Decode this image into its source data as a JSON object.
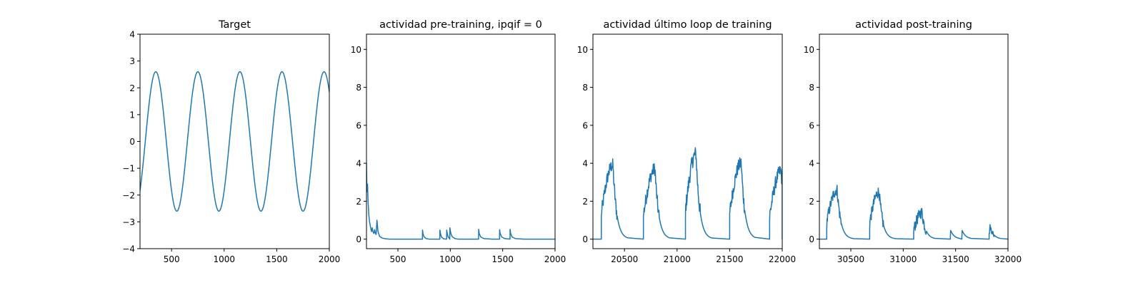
{
  "chart_data": [
    {
      "type": "line",
      "title": "Target",
      "xlim": [
        200,
        2000
      ],
      "ylim": [
        -4,
        4
      ],
      "xticks": [
        500,
        1000,
        1500,
        2000
      ],
      "yticks": [
        -4,
        -3,
        -2,
        -1,
        0,
        1,
        2,
        3,
        4
      ],
      "xtick_labels": [
        "500",
        "1000",
        "1500",
        "2000"
      ],
      "ytick_labels": [
        "−4",
        "−3",
        "−2",
        "−1",
        "0",
        "1",
        "2",
        "3",
        "4"
      ],
      "series": [
        {
          "kind": "sine",
          "amplitude": 2.6,
          "period": 400,
          "peak_at": 350,
          "x_range": [
            200,
            2000
          ]
        }
      ]
    },
    {
      "type": "line",
      "title": "actividad pre-training, ipqif = 0",
      "xlim": [
        200,
        2000
      ],
      "ylim": [
        -0.5,
        10.8
      ],
      "xticks": [
        500,
        1000,
        1500,
        2000
      ],
      "yticks": [
        0,
        2,
        4,
        6,
        8,
        10
      ],
      "xtick_labels": [
        "500",
        "1000",
        "1500",
        "2000"
      ],
      "ytick_labels": [
        "0",
        "2",
        "4",
        "6",
        "8",
        "10"
      ],
      "series": [
        {
          "kind": "spiky",
          "x": [
            200,
            203,
            206,
            210,
            215,
            222,
            230,
            240,
            248,
            255,
            262,
            270,
            278,
            285,
            292,
            300,
            310,
            325,
            350,
            380,
            420,
            500,
            600,
            700,
            734,
            735,
            740,
            750,
            770,
            800,
            850,
            900,
            901,
            906,
            915,
            935,
            960,
            965,
            966,
            971,
            980,
            990,
            995,
            996,
            1000,
            1008,
            1020,
            1045,
            1080,
            1150,
            1200,
            1270,
            1271,
            1276,
            1290,
            1320,
            1400,
            1470,
            1471,
            1476,
            1490,
            1520,
            1570,
            1571,
            1576,
            1590,
            1620,
            1700,
            1800,
            1900,
            2000
          ],
          "y": [
            4.0,
            3.0,
            2.5,
            2.9,
            2.0,
            1.3,
            0.9,
            0.6,
            0.4,
            0.6,
            0.4,
            0.3,
            0.5,
            0.3,
            0.25,
            1.0,
            0.4,
            0.15,
            0.06,
            0.02,
            0.0,
            0.0,
            0.0,
            0.0,
            0.0,
            0.48,
            0.28,
            0.12,
            0.03,
            0.0,
            0.0,
            0.0,
            0.48,
            0.3,
            0.12,
            0.02,
            0.0,
            0.0,
            0.48,
            0.3,
            0.12,
            0.05,
            0.0,
            0.6,
            0.45,
            0.25,
            0.12,
            0.03,
            0.0,
            0.0,
            0.0,
            0.0,
            0.52,
            0.3,
            0.12,
            0.03,
            0.0,
            0.0,
            0.5,
            0.3,
            0.12,
            0.03,
            0.0,
            0.52,
            0.3,
            0.12,
            0.03,
            0.0,
            0.0,
            0.0,
            0.0
          ]
        }
      ]
    },
    {
      "type": "line",
      "title": "actividad último loop de training",
      "xlim": [
        20200,
        22000
      ],
      "ylim": [
        -0.5,
        10.8
      ],
      "xticks": [
        20500,
        21000,
        21500,
        22000
      ],
      "yticks": [
        0,
        2,
        4,
        6,
        8,
        10
      ],
      "xtick_labels": [
        "20500",
        "21000",
        "21500",
        "22000"
      ],
      "ytick_labels": [
        "0",
        "2",
        "4",
        "6",
        "8",
        "10"
      ],
      "series": [
        {
          "kind": "bursts",
          "bursts": [
            {
              "start": 20280,
              "peak_x": 20390,
              "peak_y": 3.9,
              "end": 20530,
              "noise": 0.35
            },
            {
              "start": 20680,
              "peak_x": 20790,
              "peak_y": 3.7,
              "end": 20930,
              "noise": 0.35
            },
            {
              "start": 21080,
              "peak_x": 21180,
              "peak_y": 4.5,
              "end": 21330,
              "noise": 0.4
            },
            {
              "start": 21500,
              "peak_x": 21610,
              "peak_y": 4.0,
              "end": 21740,
              "noise": 0.35
            },
            {
              "start": 21880,
              "peak_x": 21990,
              "peak_y": 3.6,
              "end": 22000,
              "noise": 0.35
            }
          ]
        }
      ]
    },
    {
      "type": "line",
      "title": "actividad post-training",
      "xlim": [
        30200,
        32000
      ],
      "ylim": [
        -0.5,
        10.8
      ],
      "xticks": [
        30500,
        31000,
        31500,
        32000
      ],
      "yticks": [
        0,
        2,
        4,
        6,
        8,
        10
      ],
      "xtick_labels": [
        "30500",
        "31000",
        "31500",
        "32000"
      ],
      "ytick_labels": [
        "0",
        "2",
        "4",
        "6",
        "8",
        "10"
      ],
      "series": [
        {
          "kind": "bursts",
          "bursts": [
            {
              "start": 30270,
              "peak_x": 30370,
              "peak_y": 2.6,
              "end": 30530,
              "noise": 0.3
            },
            {
              "start": 30680,
              "peak_x": 30770,
              "peak_y": 2.5,
              "end": 30930,
              "noise": 0.3
            },
            {
              "start": 31100,
              "peak_x": 31180,
              "peak_y": 1.4,
              "end": 31300,
              "noise": 0.3
            },
            {
              "start": 31450,
              "peak_x": 31450,
              "peak_y": 0.5,
              "end": 31540,
              "noise": 0.0
            },
            {
              "start": 31560,
              "peak_x": 31560,
              "peak_y": 0.5,
              "end": 31650,
              "noise": 0.0
            },
            {
              "start": 31820,
              "peak_x": 31830,
              "peak_y": 0.65,
              "end": 31930,
              "noise": 0.15
            }
          ]
        }
      ]
    }
  ],
  "style": {
    "line_color": "#1f77b4"
  }
}
